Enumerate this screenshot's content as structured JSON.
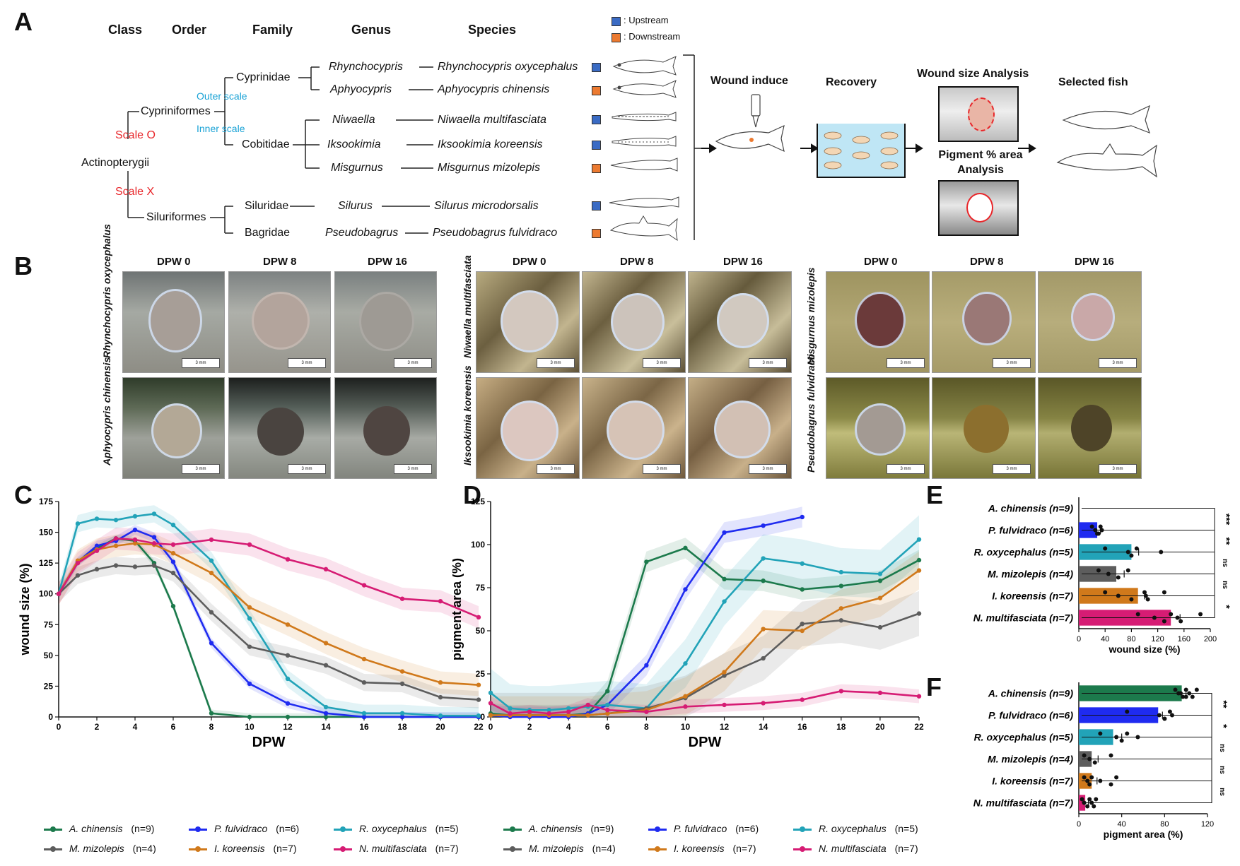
{
  "panels": {
    "a": "A",
    "b": "B",
    "c": "C",
    "d": "D",
    "e": "E",
    "f": "F"
  },
  "taxonomy": {
    "headers": {
      "class": "Class",
      "order": "Order",
      "family": "Family",
      "genus": "Genus",
      "species": "Species"
    },
    "legend": {
      "upstream": ": Upstream",
      "downstream": ": Downstream",
      "upstream_color": "#3a6bc4",
      "downstream_color": "#ec7a30"
    },
    "root": "Actinopterygii",
    "scale_o": "Scale O",
    "scale_x": "Scale X",
    "outer_scale": "Outer scale",
    "inner_scale": "Inner scale",
    "order1": "Cypriniformes",
    "order2": "Siluriformes",
    "families": [
      "Cyprinidae",
      "Cobitidae",
      "Siluridae",
      "Bagridae"
    ],
    "genera": [
      "Rhynchocypris",
      "Aphyocypris",
      "Niwaella",
      "Iksookimia",
      "Misgurnus",
      "Silurus",
      "Pseudobagrus"
    ],
    "species": [
      "Rhynchocypris oxycephalus",
      "Aphyocypris chinensis",
      "Niwaella multifasciata",
      "Iksookimia koreensis",
      "Misgurnus mizolepis",
      "Silurus microdorsalis",
      "Pseudobagrus fulvidraco"
    ]
  },
  "workflow": {
    "wound_induce": "Wound induce",
    "recovery": "Recovery",
    "wound_size_analysis": "Wound size  Analysis",
    "pigment_analysis": "Pigment % area Analysis",
    "selected_fish": "Selected fish"
  },
  "photos": {
    "dpw": [
      "DPW 0",
      "DPW 8",
      "DPW 16"
    ],
    "scale_bar": "3 mm",
    "species_labels": [
      "Rhynchocypris oxycephalus",
      "Aphyocypris chinensis",
      "Niwaella multifasciata",
      "Iksookimia koreensis",
      "Misgurnus mizolepis",
      "Pseudobagrus fulvidraco"
    ]
  },
  "legend_series": [
    {
      "name": "A. chinensis",
      "n": "(n=9)",
      "color": "#1c7a4c"
    },
    {
      "name": "P. fulvidraco",
      "n": "(n=6)",
      "color": "#1f2bf0"
    },
    {
      "name": "R. oxycephalus",
      "n": "(n=5)",
      "color": "#22a3b8"
    },
    {
      "name": "M. mizolepis",
      "n": "(n=4)",
      "color": "#5d5d5d"
    },
    {
      "name": "I. koreensis",
      "n": "(n=7)",
      "color": "#d0791b"
    },
    {
      "name": "N. multifasciata",
      "n": "(n=7)",
      "color": "#d61c74"
    }
  ],
  "chart_data": [
    {
      "id": "C",
      "type": "line",
      "xlabel": "DPW",
      "ylabel": "wound size (%)",
      "xlim": [
        0,
        22
      ],
      "ylim": [
        0,
        175
      ],
      "xticks": [
        0,
        2,
        4,
        6,
        8,
        10,
        12,
        14,
        16,
        18,
        20,
        22
      ],
      "yticks": [
        0,
        25,
        50,
        75,
        100,
        125,
        150,
        175
      ],
      "series": [
        {
          "name": "A. chinensis",
          "color": "#1c7a4c",
          "x": [
            0,
            1,
            2,
            3,
            4,
            5,
            6,
            8,
            10,
            12,
            14,
            16,
            18,
            20,
            22
          ],
          "y": [
            100,
            126,
            137,
            145,
            143,
            125,
            90,
            3,
            0,
            0,
            0,
            0,
            0,
            0,
            0
          ],
          "band": 3
        },
        {
          "name": "P. fulvidraco",
          "color": "#1f2bf0",
          "x": [
            0,
            1,
            2,
            3,
            4,
            5,
            6,
            8,
            10,
            12,
            14,
            16,
            18,
            20,
            22
          ],
          "y": [
            100,
            126,
            139,
            143,
            152,
            146,
            126,
            60,
            27,
            11,
            3,
            0,
            0,
            0,
            0
          ],
          "band": 4
        },
        {
          "name": "R. oxycephalus",
          "color": "#22a3b8",
          "x": [
            0,
            1,
            2,
            3,
            4,
            5,
            6,
            8,
            10,
            12,
            14,
            16,
            18,
            20,
            22
          ],
          "y": [
            100,
            157,
            161,
            160,
            163,
            165,
            156,
            127,
            80,
            31,
            8,
            3,
            3,
            1,
            1
          ],
          "band": 7
        },
        {
          "name": "M. mizolepis",
          "color": "#5d5d5d",
          "x": [
            0,
            1,
            2,
            3,
            4,
            5,
            6,
            8,
            10,
            12,
            14,
            16,
            18,
            20,
            22
          ],
          "y": [
            100,
            115,
            120,
            123,
            122,
            123,
            117,
            85,
            57,
            50,
            42,
            28,
            27,
            16,
            14
          ],
          "band": 7
        },
        {
          "name": "I. koreensis",
          "color": "#d0791b",
          "x": [
            0,
            1,
            2,
            3,
            4,
            5,
            6,
            8,
            10,
            12,
            14,
            16,
            18,
            20,
            22
          ],
          "y": [
            100,
            127,
            136,
            139,
            141,
            140,
            133,
            117,
            89,
            75,
            60,
            47,
            37,
            28,
            26
          ],
          "band": 9
        },
        {
          "name": "N. multifasciata",
          "color": "#d61c74",
          "x": [
            0,
            1,
            2,
            3,
            4,
            5,
            6,
            8,
            10,
            12,
            14,
            16,
            18,
            20,
            22
          ],
          "y": [
            100,
            125,
            135,
            145,
            144,
            141,
            140,
            144,
            140,
            128,
            120,
            107,
            96,
            94,
            81
          ],
          "band": 9
        }
      ]
    },
    {
      "id": "D",
      "type": "line",
      "xlabel": "DPW",
      "ylabel": "pigment area (%)",
      "xlim": [
        0,
        22
      ],
      "ylim": [
        0,
        125
      ],
      "xticks": [
        0,
        2,
        4,
        6,
        8,
        10,
        12,
        14,
        16,
        18,
        20,
        22
      ],
      "yticks": [
        0,
        25,
        50,
        75,
        100,
        125
      ],
      "series": [
        {
          "name": "A. chinensis",
          "color": "#1c7a4c",
          "x": [
            0,
            1,
            2,
            3,
            4,
            5,
            6,
            8,
            10,
            12,
            14,
            16,
            18,
            20,
            22
          ],
          "y": [
            2,
            1,
            1,
            1,
            1,
            2,
            15,
            90,
            98,
            80,
            79,
            74,
            76,
            79,
            91
          ],
          "band": 6
        },
        {
          "name": "P. fulvidraco",
          "color": "#1f2bf0",
          "x": [
            0,
            1,
            2,
            3,
            4,
            5,
            6,
            8,
            10,
            12,
            14,
            16
          ],
          "y": [
            1,
            0,
            0,
            0,
            0,
            2,
            7,
            30,
            74,
            107,
            111,
            116
          ],
          "band": 6
        },
        {
          "name": "R. oxycephalus",
          "color": "#22a3b8",
          "x": [
            0,
            1,
            2,
            3,
            4,
            5,
            6,
            8,
            10,
            12,
            14,
            16,
            18,
            20,
            22
          ],
          "y": [
            14,
            5,
            4,
            4,
            5,
            6,
            7,
            5,
            31,
            67,
            92,
            89,
            84,
            83,
            103
          ],
          "band": 14
        },
        {
          "name": "M. mizolepis",
          "color": "#5d5d5d",
          "x": [
            0,
            1,
            2,
            3,
            4,
            5,
            6,
            8,
            10,
            12,
            14,
            16,
            18,
            20,
            22
          ],
          "y": [
            1,
            1,
            1,
            1,
            1,
            1,
            2,
            5,
            11,
            24,
            34,
            54,
            56,
            52,
            60
          ],
          "band": 13
        },
        {
          "name": "I. koreensis",
          "color": "#d0791b",
          "x": [
            0,
            1,
            2,
            3,
            4,
            5,
            6,
            8,
            10,
            12,
            14,
            16,
            18,
            20,
            22
          ],
          "y": [
            1,
            1,
            1,
            1,
            1,
            1,
            2,
            4,
            12,
            26,
            51,
            50,
            63,
            69,
            85
          ],
          "band": 11
        },
        {
          "name": "N. multifasciata",
          "color": "#d61c74",
          "x": [
            0,
            1,
            2,
            3,
            4,
            5,
            6,
            8,
            10,
            12,
            14,
            16,
            18,
            20,
            22
          ],
          "y": [
            8,
            2,
            3,
            2,
            3,
            7,
            4,
            3,
            6,
            7,
            8,
            10,
            15,
            14,
            12
          ],
          "band": 4
        }
      ]
    },
    {
      "id": "E",
      "type": "bar",
      "orientation": "horizontal",
      "xlabel": "wound size (%)",
      "xlim": [
        0,
        200
      ],
      "xticks": [
        0,
        40,
        80,
        120,
        160,
        200
      ],
      "categories": [
        "A. chinensis (n=9)",
        "P. fulvidraco (n=6)",
        "R. oxycephalus (n=5)",
        "M. mizolepis (n=4)",
        "I. koreensis (n=7)",
        "N. multifasciata (n=7)"
      ],
      "values": [
        0,
        28,
        80,
        57,
        90,
        140
      ],
      "errors": [
        0,
        5,
        11,
        12,
        10,
        14
      ],
      "colors": [
        "#1c7a4c",
        "#1f2bf0",
        "#22a3b8",
        "#5d5d5d",
        "#d0791b",
        "#d61c74"
      ],
      "points": [
        [],
        [
          20,
          25,
          30,
          33,
          35,
          28
        ],
        [
          40,
          75,
          80,
          88,
          125
        ],
        [
          30,
          45,
          60,
          75
        ],
        [
          40,
          60,
          80,
          100,
          102,
          105,
          130
        ],
        [
          90,
          115,
          130,
          140,
          150,
          155,
          185
        ]
      ],
      "significance": [
        "***",
        "**",
        "ns",
        "ns",
        "*"
      ]
    },
    {
      "id": "F",
      "type": "bar",
      "orientation": "horizontal",
      "xlabel": "pigment area (%)",
      "xlim": [
        0,
        120
      ],
      "xticks": [
        0,
        40,
        80,
        120
      ],
      "categories": [
        "A. chinensis (n=9)",
        "P. fulvidraco (n=6)",
        "R. oxycephalus (n=5)",
        "M. mizolepis (n=4)",
        "I. koreensis (n=7)",
        "N. multifasciata (n=7)"
      ],
      "values": [
        96,
        74,
        32,
        12,
        12,
        6
      ],
      "errors": [
        4,
        4,
        8,
        6,
        5,
        3
      ],
      "colors": [
        "#1c7a4c",
        "#1f2bf0",
        "#22a3b8",
        "#5d5d5d",
        "#d0791b",
        "#d61c74"
      ],
      "points": [
        [
          90,
          93,
          97,
          100,
          103,
          106,
          110,
          95,
          100
        ],
        [
          45,
          75,
          80,
          85,
          87,
          80
        ],
        [
          20,
          35,
          40,
          45,
          55
        ],
        [
          5,
          10,
          15,
          30
        ],
        [
          5,
          8,
          10,
          12,
          20,
          30,
          35
        ],
        [
          3,
          5,
          8,
          10,
          12,
          14,
          16
        ]
      ],
      "significance": [
        "**",
        "*",
        "ns",
        "ns",
        "ns"
      ]
    }
  ]
}
